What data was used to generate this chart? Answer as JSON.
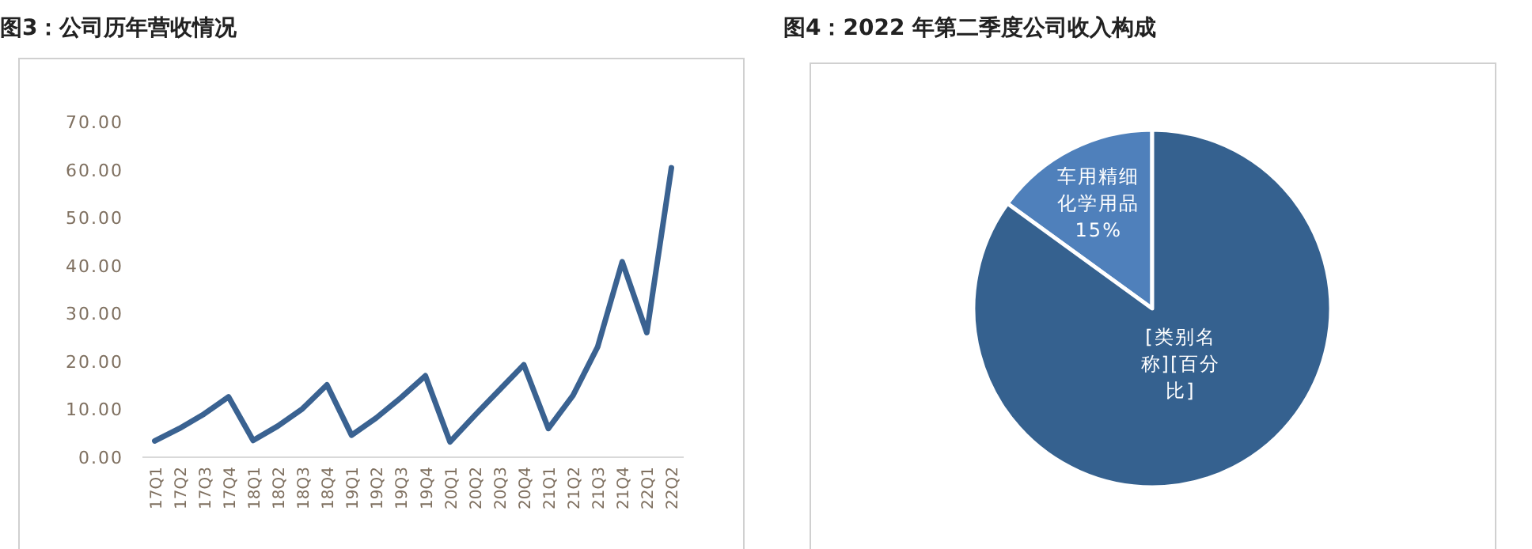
{
  "chart_data": [
    {
      "type": "line",
      "title": "图3：公司历年营收情况",
      "categories": [
        "17Q1",
        "17Q2",
        "17Q3",
        "17Q4",
        "18Q1",
        "18Q2",
        "18Q3",
        "18Q4",
        "19Q1",
        "19Q2",
        "19Q3",
        "19Q4",
        "20Q1",
        "20Q2",
        "20Q3",
        "20Q4",
        "21Q1",
        "21Q2",
        "21Q3",
        "21Q4",
        "22Q1",
        "22Q2"
      ],
      "values": [
        3.4,
        6.0,
        9.0,
        12.6,
        3.5,
        6.5,
        10.1,
        15.1,
        4.6,
        8.2,
        12.4,
        17.0,
        3.2,
        8.7,
        14.0,
        19.3,
        6.0,
        12.9,
        23.0,
        40.8,
        26.0,
        60.4
      ],
      "color": "#3a6291",
      "ylim": [
        0,
        70
      ],
      "yticks": [
        {
          "value": 0,
          "label": "0.00"
        },
        {
          "value": 10,
          "label": "10.00"
        },
        {
          "value": 20,
          "label": "20.00"
        },
        {
          "value": 30,
          "label": "30.00"
        },
        {
          "value": 40,
          "label": "40.00"
        },
        {
          "value": 50,
          "label": "50.00"
        },
        {
          "value": 60,
          "label": "60.00"
        },
        {
          "value": 70,
          "label": "70.00"
        }
      ],
      "grid": false,
      "marker": "none",
      "line_style": "solid"
    },
    {
      "type": "pie",
      "title": "图4：2022 年第二季度公司收入构成",
      "categories": [
        "车用精细化学用品",
        "[类别名称][百分比]"
      ],
      "values": [
        15,
        85
      ],
      "colors": [
        "#4f80bb",
        "#35618f"
      ],
      "value_labels": [
        "15%",
        null
      ]
    }
  ]
}
